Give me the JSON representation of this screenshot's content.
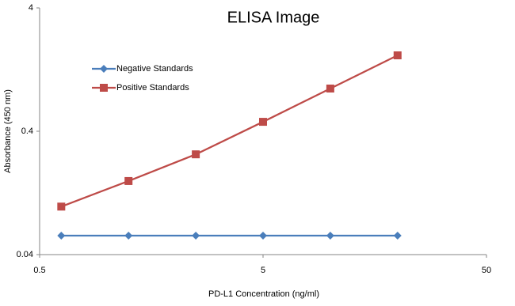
{
  "chart_data": {
    "type": "line",
    "title": "ELISA Image",
    "x_label": "PD-L1 Concentration  (ng/ml)",
    "y_label": "Absorbance (450 nm)",
    "x": [
      0.625,
      1.25,
      2.5,
      5,
      10,
      20
    ],
    "series": [
      {
        "name": "Negative Standards",
        "color": "#4a7ebb",
        "marker": "diamond",
        "values": [
          0.057,
          0.057,
          0.057,
          0.057,
          0.057,
          0.057
        ]
      },
      {
        "name": "Positive Standards",
        "color": "#be4b48",
        "marker": "square",
        "values": [
          0.098,
          0.158,
          0.26,
          0.477,
          0.888,
          1.65
        ]
      }
    ],
    "xlim": [
      0.5,
      50
    ],
    "xticks": [
      0.5,
      5,
      50
    ],
    "xscale": "log",
    "ylim": [
      0.04,
      4
    ],
    "yticks": [
      0.04,
      0.4,
      4
    ],
    "yscale": "log",
    "grid": false,
    "legend": "upper left"
  }
}
